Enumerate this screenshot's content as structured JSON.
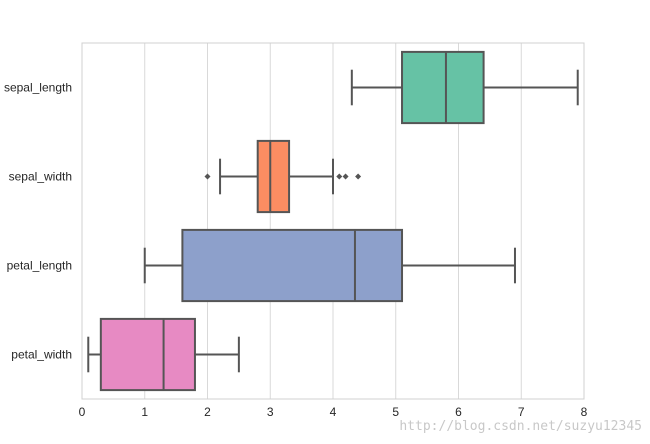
{
  "chart_data": {
    "type": "boxplot",
    "orientation": "horizontal",
    "title": "",
    "xlabel": "",
    "ylabel": "",
    "xlim": [
      0,
      8
    ],
    "xticks": [
      0,
      1,
      2,
      3,
      4,
      5,
      6,
      7,
      8
    ],
    "grid": "vertical",
    "categories": [
      "sepal_length",
      "sepal_width",
      "petal_length",
      "petal_width"
    ],
    "boxes": [
      {
        "label": "sepal_length",
        "whisker_low": 4.3,
        "q1": 5.1,
        "median": 5.8,
        "q3": 6.4,
        "whisker_high": 7.9,
        "outliers": [],
        "color": "#66c2a5"
      },
      {
        "label": "sepal_width",
        "whisker_low": 2.2,
        "q1": 2.8,
        "median": 3.0,
        "q3": 3.3,
        "whisker_high": 4.0,
        "outliers": [
          2.0,
          4.1,
          4.2,
          4.4
        ],
        "color": "#fc8d62"
      },
      {
        "label": "petal_length",
        "whisker_low": 1.0,
        "q1": 1.6,
        "median": 4.35,
        "q3": 5.1,
        "whisker_high": 6.9,
        "outliers": [],
        "color": "#8da0cb"
      },
      {
        "label": "petal_width",
        "whisker_low": 0.1,
        "q1": 0.3,
        "median": 1.3,
        "q3": 1.8,
        "whisker_high": 2.5,
        "outliers": [],
        "color": "#e78ac3"
      }
    ],
    "line_color": "#555555",
    "grid_color": "#d9d9d9"
  },
  "watermark": "http://blog.csdn.net/suzyu12345"
}
